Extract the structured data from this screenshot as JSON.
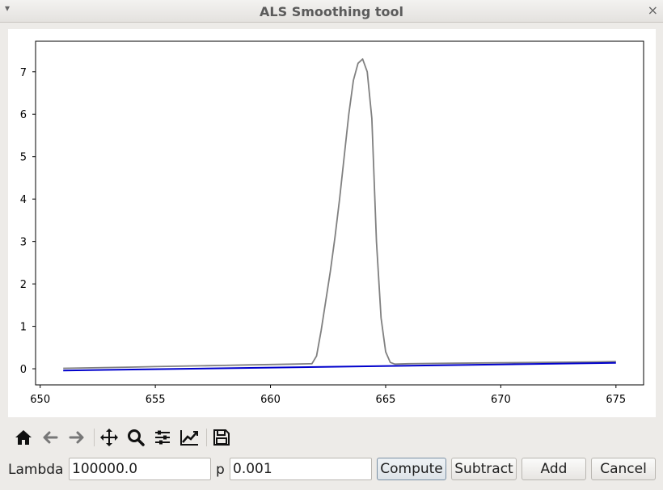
{
  "window": {
    "title": "ALS Smoothing tool",
    "menu_icon": "chevron-down-icon",
    "close_glyph": "×"
  },
  "chart_data": {
    "type": "line",
    "title": "",
    "xlabel": "",
    "ylabel": "",
    "xlim": [
      649.8,
      676.2
    ],
    "ylim": [
      -0.38,
      7.72
    ],
    "xticks": [
      650,
      655,
      660,
      665,
      670,
      675
    ],
    "yticks": [
      0,
      1,
      2,
      3,
      4,
      5,
      6,
      7
    ],
    "grid": false,
    "series": [
      {
        "color": "#808080",
        "x": [
          651,
          652,
          653,
          654,
          655,
          656,
          657,
          658,
          659,
          660,
          661,
          661.8,
          662.0,
          662.2,
          662.4,
          662.6,
          662.8,
          663.0,
          663.2,
          663.4,
          663.6,
          663.8,
          664.0,
          664.2,
          664.4,
          664.6,
          664.8,
          665.0,
          665.2,
          665.4,
          666,
          668,
          670,
          672,
          674,
          675
        ],
        "y": [
          0.01,
          0.02,
          0.03,
          0.04,
          0.05,
          0.06,
          0.07,
          0.08,
          0.09,
          0.1,
          0.11,
          0.12,
          0.3,
          0.9,
          1.6,
          2.3,
          3.1,
          4.0,
          5.0,
          6.0,
          6.8,
          7.2,
          7.3,
          7.0,
          5.9,
          3.0,
          1.2,
          0.4,
          0.15,
          0.11,
          0.12,
          0.13,
          0.14,
          0.15,
          0.16,
          0.17
        ]
      },
      {
        "color": "#0000cc",
        "x": [
          651,
          675
        ],
        "y": [
          -0.04,
          0.14
        ]
      }
    ]
  },
  "toolbar": [
    {
      "name": "home-icon",
      "interactable": true
    },
    {
      "name": "back-arrow-icon",
      "interactable": true
    },
    {
      "name": "forward-arrow-icon",
      "interactable": true
    },
    {
      "name": "pan-icon",
      "interactable": true
    },
    {
      "name": "zoom-icon",
      "interactable": true
    },
    {
      "name": "configure-subplots-icon",
      "interactable": true
    },
    {
      "name": "edit-axis-icon",
      "interactable": true
    },
    {
      "name": "save-icon",
      "interactable": true
    }
  ],
  "controls": {
    "lambda_label": "Lambda",
    "lambda_value": "100000.0",
    "p_label": "p",
    "p_value": "0.001",
    "compute_label": "Compute",
    "subtract_label": "Subtract",
    "add_label": "Add",
    "cancel_label": "Cancel"
  }
}
